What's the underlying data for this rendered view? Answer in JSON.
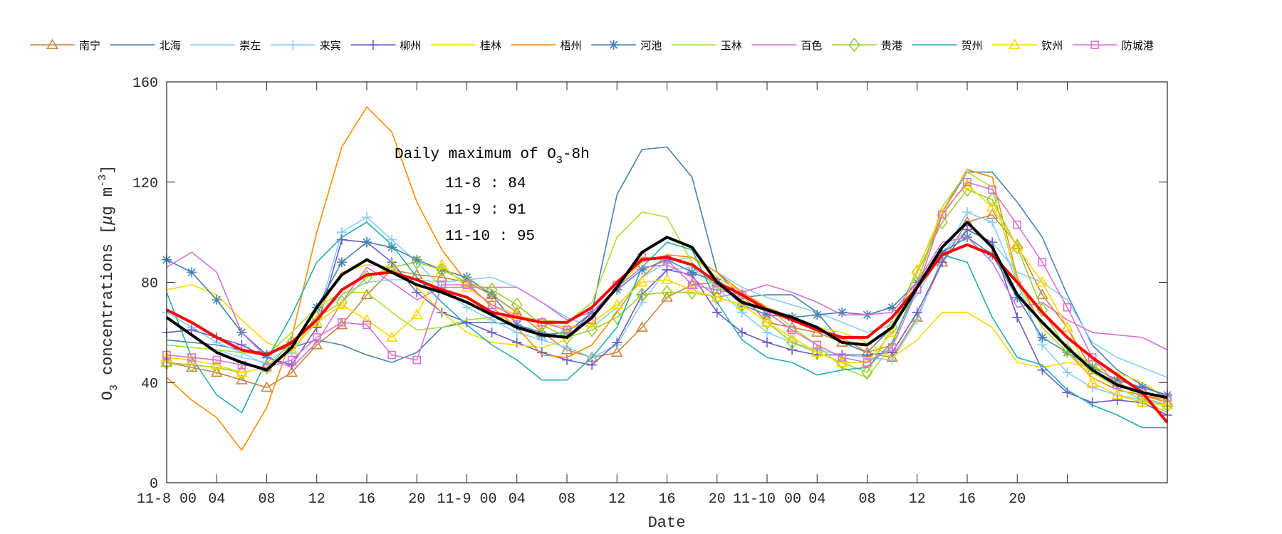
{
  "chart_data": {
    "type": "line",
    "xlabel": "Date",
    "ylabel_parts": [
      "O",
      "3",
      " concentrations [",
      "μ",
      "g m",
      "-3",
      "]"
    ],
    "xlim": [
      0,
      80
    ],
    "ylim": [
      0,
      160
    ],
    "y_ticks": [
      0,
      40,
      80,
      120,
      160
    ],
    "x_tick_hours": [
      0,
      4,
      8,
      12,
      16,
      20,
      24,
      28,
      32,
      36,
      40,
      44,
      48,
      52,
      56,
      60,
      64,
      68,
      72
    ],
    "x_tick_labels": [
      "11-8 00",
      "04",
      "08",
      "12",
      "16",
      "20",
      "11-9 00",
      "04",
      "08",
      "12",
      "16",
      "20",
      "11-10 00",
      "04",
      "08",
      "12",
      "16",
      "20",
      ""
    ],
    "x_hours": [
      0,
      2,
      4,
      6,
      8,
      10,
      12,
      14,
      16,
      18,
      20,
      22,
      24,
      26,
      28,
      30,
      32,
      34,
      36,
      38,
      40,
      42,
      44,
      46,
      48,
      50,
      52,
      54,
      56,
      58,
      60,
      62,
      64,
      66,
      68,
      70,
      72,
      74,
      76,
      78,
      80
    ],
    "grid": false,
    "legend_position": "top",
    "annotation": {
      "title_prefix": "Daily maximum of O",
      "title_sub": "3",
      "title_suffix": "-8h",
      "lines": [
        "11-8 : 84",
        "11-9 : 91",
        "11-10 : 95"
      ]
    },
    "series": [
      {
        "name": "南宁",
        "color": "#CD853F",
        "marker": "triangle",
        "values": [
          48,
          46,
          44,
          41,
          38,
          44,
          55,
          63,
          75,
          85,
          83,
          82,
          80,
          75,
          68,
          60,
          53,
          50,
          52,
          62,
          74,
          79,
          80,
          75,
          64,
          62,
          60,
          56,
          52,
          50,
          66,
          88,
          104,
          107,
          95,
          75,
          62,
          45,
          40,
          35,
          32
        ]
      },
      {
        "name": "北海",
        "color": "#4682B4",
        "marker": "none",
        "values": [
          57,
          56,
          55,
          53,
          52,
          54,
          57,
          55,
          51,
          48,
          52,
          62,
          64,
          64,
          63,
          60,
          58,
          68,
          115,
          133,
          134,
          122,
          84,
          74,
          75,
          75,
          68,
          56,
          52,
          62,
          85,
          108,
          124,
          124,
          112,
          98,
          75,
          55,
          45,
          39,
          34
        ]
      },
      {
        "name": "崇左",
        "color": "#87CEFA",
        "marker": "none",
        "values": [
          55,
          54,
          53,
          50,
          48,
          55,
          66,
          75,
          80,
          81,
          81,
          80,
          81,
          82,
          78,
          72,
          66,
          62,
          70,
          82,
          88,
          90,
          84,
          78,
          74,
          71,
          68,
          64,
          60,
          63,
          75,
          92,
          101,
          96,
          84,
          80,
          73,
          56,
          50,
          46,
          42
        ]
      },
      {
        "name": "来宾",
        "color": "#87CEFA",
        "marker": "plus",
        "values": [
          68,
          62,
          56,
          52,
          47,
          52,
          65,
          100,
          106,
          97,
          88,
          78,
          70,
          65,
          60,
          57,
          54,
          50,
          55,
          72,
          85,
          86,
          78,
          68,
          60,
          56,
          53,
          51,
          50,
          49,
          65,
          90,
          108,
          104,
          80,
          55,
          44,
          38,
          35,
          33,
          31
        ]
      },
      {
        "name": "柳州",
        "color": "#6A5ACD",
        "marker": "plus",
        "values": [
          60,
          61,
          58,
          55,
          50,
          47,
          62,
          97,
          96,
          88,
          76,
          68,
          64,
          60,
          56,
          52,
          49,
          47,
          56,
          75,
          85,
          83,
          68,
          60,
          56,
          53,
          51,
          51,
          51,
          52,
          68,
          88,
          101,
          96,
          66,
          45,
          36,
          32,
          33,
          32,
          27
        ]
      },
      {
        "name": "桂林",
        "color": "#FFD700",
        "marker": "none",
        "values": [
          77,
          79,
          75,
          65,
          56,
          52,
          67,
          84,
          87,
          86,
          78,
          68,
          60,
          56,
          55,
          54,
          57,
          66,
          78,
          88,
          91,
          90,
          82,
          76,
          70,
          65,
          62,
          60,
          56,
          50,
          57,
          68,
          68,
          62,
          48,
          46,
          48,
          46,
          44,
          40,
          34
        ]
      },
      {
        "name": "梧州",
        "color": "#FF8C00",
        "marker": "none",
        "values": [
          42,
          33,
          26,
          13,
          30,
          58,
          100,
          134,
          150,
          140,
          112,
          93,
          80,
          70,
          62,
          51,
          50,
          55,
          68,
          82,
          91,
          90,
          84,
          76,
          70,
          66,
          61,
          58,
          52,
          55,
          80,
          108,
          125,
          122,
          82,
          62,
          52,
          42,
          37,
          35,
          33
        ]
      },
      {
        "name": "河池",
        "color": "#4682B4",
        "marker": "asterisk",
        "values": [
          89,
          84,
          73,
          60,
          51,
          55,
          70,
          88,
          96,
          94,
          89,
          85,
          82,
          75,
          63,
          59,
          60,
          68,
          77,
          85,
          89,
          84,
          80,
          71,
          67,
          66,
          67,
          68,
          67,
          70,
          80,
          92,
          98,
          91,
          74,
          58,
          52,
          46,
          41,
          38,
          35
        ]
      },
      {
        "name": "玉林",
        "color": "#A6E22E",
        "marker": "none",
        "values": [
          55,
          54,
          53,
          52,
          51,
          60,
          70,
          76,
          76,
          68,
          61,
          62,
          65,
          66,
          66,
          65,
          64,
          72,
          98,
          108,
          106,
          88,
          78,
          74,
          70,
          62,
          55,
          46,
          42,
          55,
          80,
          110,
          124,
          118,
          80,
          62,
          52,
          44,
          38,
          33,
          28
        ]
      },
      {
        "name": "百色",
        "color": "#DA70D6",
        "marker": "none",
        "values": [
          86,
          92,
          84,
          60,
          50,
          46,
          56,
          72,
          86,
          80,
          73,
          78,
          78,
          78,
          78,
          72,
          65,
          68,
          78,
          86,
          87,
          82,
          74,
          76,
          79,
          76,
          72,
          67,
          67,
          68,
          80,
          96,
          98,
          88,
          70,
          72,
          65,
          60,
          59,
          58,
          53
        ]
      },
      {
        "name": "贵港",
        "color": "#9ACD32",
        "marker": "diamond",
        "values": [
          48,
          47,
          46,
          44,
          46,
          56,
          66,
          72,
          82,
          86,
          88,
          85,
          80,
          77,
          71,
          63,
          58,
          61,
          66,
          75,
          76,
          76,
          74,
          71,
          64,
          56,
          52,
          48,
          44,
          62,
          84,
          104,
          117,
          113,
          94,
          69,
          53,
          47,
          40,
          34,
          31
        ]
      },
      {
        "name": "贺州",
        "color": "#20B2AA",
        "marker": "none",
        "values": [
          76,
          50,
          35,
          28,
          49,
          67,
          88,
          98,
          104,
          95,
          82,
          72,
          63,
          55,
          49,
          41,
          41,
          50,
          62,
          86,
          96,
          93,
          72,
          57,
          50,
          48,
          43,
          45,
          46,
          56,
          78,
          91,
          88,
          66,
          50,
          47,
          37,
          31,
          27,
          22,
          22
        ]
      },
      {
        "name": "钦州",
        "color": "#FFD700",
        "marker": "triangle",
        "values": [
          50,
          49,
          47,
          44,
          46,
          53,
          64,
          71,
          65,
          58,
          67,
          87,
          78,
          71,
          67,
          64,
          62,
          64,
          71,
          80,
          81,
          77,
          74,
          71,
          64,
          58,
          52,
          48,
          48,
          60,
          85,
          108,
          119,
          110,
          94,
          80,
          62,
          40,
          35,
          32,
          31
        ]
      },
      {
        "name": "防城港",
        "color": "#DA70D6",
        "marker": "square",
        "values": [
          51,
          50,
          49,
          47,
          46,
          49,
          58,
          64,
          63,
          51,
          49,
          79,
          79,
          71,
          66,
          64,
          61,
          65,
          79,
          90,
          89,
          79,
          77,
          75,
          68,
          61,
          55,
          50,
          48,
          54,
          77,
          107,
          120,
          117,
          103,
          88,
          70,
          50,
          39,
          36,
          34
        ]
      },
      {
        "color": "#FF0000",
        "marker": "none",
        "thick": true,
        "values": [
          69,
          64,
          58,
          53,
          51,
          56,
          65,
          77,
          83,
          84,
          81,
          77,
          74,
          68,
          66,
          64,
          64,
          70,
          80,
          89,
          90,
          87,
          80,
          75,
          69,
          65,
          61,
          58,
          58,
          66,
          78,
          91,
          95,
          91,
          80,
          68,
          58,
          50,
          43,
          36,
          24
        ]
      },
      {
        "color": "#000000",
        "marker": "none",
        "thick": true,
        "values": [
          66,
          59,
          52,
          48,
          45,
          54,
          70,
          83,
          89,
          84,
          79,
          76,
          72,
          67,
          62,
          59,
          58,
          66,
          78,
          92,
          98,
          94,
          80,
          72,
          69,
          66,
          62,
          56,
          55,
          62,
          78,
          94,
          104,
          94,
          75,
          64,
          54,
          45,
          39,
          36,
          34
        ]
      }
    ]
  }
}
